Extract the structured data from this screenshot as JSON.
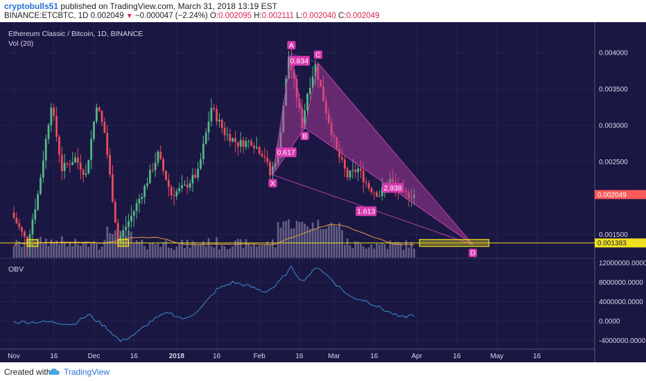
{
  "header": {
    "author": "cryptobulls51",
    "published_text": " published on TradingView.com, March 31, 2018 13:19 EST",
    "symbol_line": "BINANCE:ETCBTC, 1D",
    "last": "0.002049",
    "change": "−0.000047 (−2.24%)",
    "open_label": "O:",
    "open": "0.002095",
    "high_label": "H:",
    "high": "0.002111",
    "low_label": "L:",
    "low": "0.002040",
    "close_label": "C:",
    "close": "0.002049"
  },
  "chart_title": "Ethereum Classic / Bitcoin, 1D, BINANCE",
  "volume_label": "Vol (20)",
  "obv_label": "OBV",
  "colors": {
    "background": "#1b1743",
    "up": "#53b987",
    "down": "#eb4d5c",
    "pattern_fill": "#c040a8",
    "pattern_label": "#d63ab0",
    "support": "#f0e020",
    "obv": "#3d8fd0",
    "volume": "#9c98b8",
    "ma": "#e0a04a",
    "last_price": "#ff5a5a"
  },
  "footer": {
    "created_with": "Created with",
    "brand": "TradingView"
  },
  "chart_data": {
    "type": "candlestick",
    "x_ticks": [
      "Nov",
      "16",
      "Dec",
      "16",
      "2018",
      "16",
      "Feb",
      "16",
      "Mar",
      "16",
      "Apr",
      "16",
      "May",
      "16"
    ],
    "price_axis": {
      "ticks": [
        "0.004000",
        "0.003500",
        "0.003000",
        "0.002500",
        "0.001500"
      ],
      "tick_values": [
        0.004,
        0.0035,
        0.003,
        0.0025,
        0.0015
      ],
      "range": [
        0.00118,
        0.00425
      ],
      "last_price_label": "0.002049",
      "last_price": 0.002049,
      "support_label": "0.001383",
      "support": 0.001383
    },
    "obv_axis": {
      "ticks": [
        "12000000.0000",
        "8000000.0000",
        "4000000.0000",
        "0.0000",
        "-4000000.0000"
      ],
      "tick_values": [
        12000000,
        8000000,
        4000000,
        0,
        -4000000
      ],
      "range": [
        -5500000,
        12200000
      ]
    },
    "harmonic_pattern": {
      "points": [
        {
          "name": "X",
          "day": 97,
          "price": 0.00232
        },
        {
          "name": "A",
          "day": 104,
          "price": 0.00399
        },
        {
          "name": "B",
          "day": 109,
          "price": 0.00297
        },
        {
          "name": "C",
          "day": 114,
          "price": 0.00386
        },
        {
          "name": "D",
          "day": 172,
          "price": 0.00136
        }
      ],
      "ratios": [
        {
          "label": "0.834",
          "day": 107,
          "price": 0.00389
        },
        {
          "label": "0.617",
          "day": 102,
          "price": 0.00263
        },
        {
          "label": "2.938",
          "day": 142,
          "price": 0.00214
        },
        {
          "label": "1.613",
          "day": 132,
          "price": 0.00182
        }
      ]
    },
    "support_boxes": [
      {
        "day_start": 5,
        "day_end": 9
      },
      {
        "day_start": 39,
        "day_end": 43
      },
      {
        "day_start": 152,
        "day_end": 178
      }
    ],
    "ohlc_keys": [
      {
        "day": 0,
        "price": 0.0018
      },
      {
        "day": 6,
        "price": 0.00138
      },
      {
        "day": 10,
        "price": 0.00205
      },
      {
        "day": 15,
        "price": 0.0033
      },
      {
        "day": 19,
        "price": 0.0024
      },
      {
        "day": 24,
        "price": 0.00255
      },
      {
        "day": 28,
        "price": 0.00232
      },
      {
        "day": 32,
        "price": 0.0033
      },
      {
        "day": 35,
        "price": 0.0029
      },
      {
        "day": 38,
        "price": 0.002
      },
      {
        "day": 40,
        "price": 0.0014
      },
      {
        "day": 45,
        "price": 0.00175
      },
      {
        "day": 50,
        "price": 0.00215
      },
      {
        "day": 55,
        "price": 0.0026
      },
      {
        "day": 60,
        "price": 0.00205
      },
      {
        "day": 65,
        "price": 0.00215
      },
      {
        "day": 70,
        "price": 0.00235
      },
      {
        "day": 75,
        "price": 0.00325
      },
      {
        "day": 80,
        "price": 0.0029
      },
      {
        "day": 85,
        "price": 0.00275
      },
      {
        "day": 90,
        "price": 0.00278
      },
      {
        "day": 95,
        "price": 0.00258
      },
      {
        "day": 97,
        "price": 0.00232
      },
      {
        "day": 100,
        "price": 0.00262
      },
      {
        "day": 104,
        "price": 0.00395
      },
      {
        "day": 107,
        "price": 0.0034
      },
      {
        "day": 109,
        "price": 0.003
      },
      {
        "day": 111,
        "price": 0.00345
      },
      {
        "day": 114,
        "price": 0.00383
      },
      {
        "day": 118,
        "price": 0.0032
      },
      {
        "day": 122,
        "price": 0.00265
      },
      {
        "day": 126,
        "price": 0.0023
      },
      {
        "day": 130,
        "price": 0.0024
      },
      {
        "day": 134,
        "price": 0.00215
      },
      {
        "day": 138,
        "price": 0.00205
      },
      {
        "day": 142,
        "price": 0.00225
      },
      {
        "day": 146,
        "price": 0.00205
      },
      {
        "day": 150,
        "price": 0.00205
      }
    ],
    "obv_keys": [
      {
        "day": 0,
        "value": -200000
      },
      {
        "day": 15,
        "value": -200000
      },
      {
        "day": 22,
        "value": -700000
      },
      {
        "day": 28,
        "value": 1300000
      },
      {
        "day": 35,
        "value": -1500000
      },
      {
        "day": 40,
        "value": -4200000
      },
      {
        "day": 46,
        "value": -2500000
      },
      {
        "day": 52,
        "value": 200000
      },
      {
        "day": 58,
        "value": 1800000
      },
      {
        "day": 64,
        "value": 300000
      },
      {
        "day": 70,
        "value": 2600000
      },
      {
        "day": 76,
        "value": 6500000
      },
      {
        "day": 82,
        "value": 8000000
      },
      {
        "day": 88,
        "value": 7200000
      },
      {
        "day": 94,
        "value": 6000000
      },
      {
        "day": 98,
        "value": 7200000
      },
      {
        "day": 104,
        "value": 11000000
      },
      {
        "day": 108,
        "value": 8200000
      },
      {
        "day": 114,
        "value": 11200000
      },
      {
        "day": 120,
        "value": 8000000
      },
      {
        "day": 126,
        "value": 5000000
      },
      {
        "day": 132,
        "value": 4200000
      },
      {
        "day": 138,
        "value": 2500000
      },
      {
        "day": 145,
        "value": 700000
      },
      {
        "day": 150,
        "value": 1300000
      }
    ]
  }
}
